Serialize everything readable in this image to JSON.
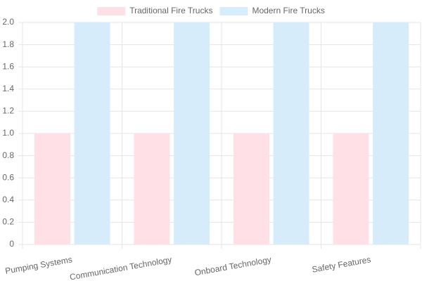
{
  "chart_data": {
    "type": "bar",
    "categories": [
      "Pumping Systems",
      "Communication Technology",
      "Onboard Technology",
      "Safety Features"
    ],
    "series": [
      {
        "name": "Traditional Fire Trucks",
        "color": "#ffe0e6",
        "values": [
          1,
          1,
          1,
          1
        ]
      },
      {
        "name": "Modern Fire Trucks",
        "color": "#d7ecfb",
        "values": [
          2,
          2,
          2,
          2
        ]
      }
    ],
    "ylim": [
      0,
      2
    ],
    "yticks": [
      0,
      0.2,
      0.4,
      0.6,
      0.8,
      {
        "value": 1,
        "label": "1.0"
      },
      1.2,
      1.4,
      1.6,
      1.8,
      {
        "value": 2,
        "label": "2.0"
      }
    ],
    "grid": true,
    "legend": "top"
  }
}
